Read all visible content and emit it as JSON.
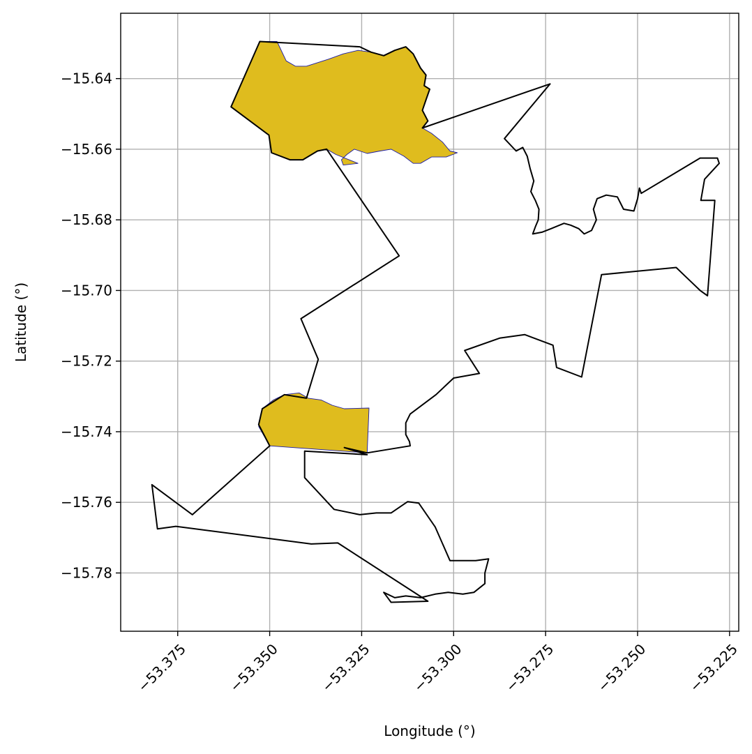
{
  "chart_data": {
    "type": "map",
    "xlabel": "Longitude (°)",
    "ylabel": "Latitude (°)",
    "xlim": [
      -53.3905,
      -53.2225
    ],
    "ylim": [
      -15.7965,
      -15.6215
    ],
    "x_ticks": [
      -53.375,
      -53.35,
      -53.325,
      -53.3,
      -53.275,
      -53.25,
      -53.225
    ],
    "x_tick_labels": [
      "−53.375",
      "−53.350",
      "−53.325",
      "−53.300",
      "−53.275",
      "−53.250",
      "−53.225"
    ],
    "y_ticks": [
      -15.64,
      -15.66,
      -15.68,
      -15.7,
      -15.72,
      -15.74,
      -15.76,
      -15.78
    ],
    "y_tick_labels": [
      "−15.64",
      "−15.66",
      "−15.68",
      "−15.70",
      "−15.72",
      "−15.74",
      "−15.76",
      "−15.78"
    ],
    "grid": true,
    "colors": {
      "highlight_fill": "#dfbc1e",
      "highlight_edge": "#1a1aa6",
      "boundary": "#000000",
      "grid": "#b0b0b0"
    },
    "boundary": [
      [
        -53.3527,
        -15.6295
      ],
      [
        -53.3255,
        -15.631
      ],
      [
        -53.3225,
        -15.6325
      ],
      [
        -53.319,
        -15.6335
      ],
      [
        -53.316,
        -15.632
      ],
      [
        -53.313,
        -15.631
      ],
      [
        -53.311,
        -15.633
      ],
      [
        -53.309,
        -15.637
      ],
      [
        -53.3075,
        -15.639
      ],
      [
        -53.308,
        -15.642
      ],
      [
        -53.3065,
        -15.643
      ],
      [
        -53.3075,
        -15.646
      ],
      [
        -53.3085,
        -15.649
      ],
      [
        -53.307,
        -15.652
      ],
      [
        -53.3085,
        -15.654
      ],
      [
        -53.2738,
        -15.6415
      ],
      [
        -53.2862,
        -15.657
      ],
      [
        -53.283,
        -15.6605
      ],
      [
        -53.2812,
        -15.6595
      ],
      [
        -53.28,
        -15.662
      ],
      [
        -53.2792,
        -15.6655
      ],
      [
        -53.2782,
        -15.669
      ],
      [
        -53.279,
        -15.672
      ],
      [
        -53.2778,
        -15.6745
      ],
      [
        -53.2768,
        -15.677
      ],
      [
        -53.277,
        -15.68
      ],
      [
        -53.2778,
        -15.682
      ],
      [
        -53.2785,
        -15.684
      ],
      [
        -53.276,
        -15.6835
      ],
      [
        -53.2735,
        -15.6825
      ],
      [
        -53.27,
        -15.681
      ],
      [
        -53.2682,
        -15.6815
      ],
      [
        -53.266,
        -15.6825
      ],
      [
        -53.2645,
        -15.684
      ],
      [
        -53.2625,
        -15.683
      ],
      [
        -53.2612,
        -15.68
      ],
      [
        -53.262,
        -15.677
      ],
      [
        -53.261,
        -15.674
      ],
      [
        -53.2585,
        -15.673
      ],
      [
        -53.2555,
        -15.6735
      ],
      [
        -53.2538,
        -15.677
      ],
      [
        -53.251,
        -15.6775
      ],
      [
        -53.25,
        -15.674
      ],
      [
        -53.2495,
        -15.671
      ],
      [
        -53.249,
        -15.6725
      ],
      [
        -53.233,
        -15.6625
      ],
      [
        -53.2283,
        -15.6625
      ],
      [
        -53.2278,
        -15.664
      ],
      [
        -53.2318,
        -15.6685
      ],
      [
        -53.2328,
        -15.6745
      ],
      [
        -53.229,
        -15.6745
      ],
      [
        -53.231,
        -15.7015
      ],
      [
        -53.233,
        -15.7
      ],
      [
        -53.235,
        -15.698
      ],
      [
        -53.237,
        -15.696
      ],
      [
        -53.2395,
        -15.6935
      ],
      [
        -53.2598,
        -15.6955
      ],
      [
        -53.2652,
        -15.7245
      ],
      [
        -53.272,
        -15.7218
      ],
      [
        -53.273,
        -15.7155
      ],
      [
        -53.2807,
        -15.7125
      ],
      [
        -53.2875,
        -15.7135
      ],
      [
        -53.297,
        -15.717
      ],
      [
        -53.293,
        -15.7235
      ],
      [
        -53.3,
        -15.7248
      ],
      [
        -53.3048,
        -15.7295
      ],
      [
        -53.3118,
        -15.735
      ],
      [
        -53.313,
        -15.7375
      ],
      [
        -53.313,
        -15.7408
      ],
      [
        -53.312,
        -15.7428
      ],
      [
        -53.3118,
        -15.744
      ],
      [
        -53.3235,
        -15.746
      ],
      [
        -53.3297,
        -15.7445
      ],
      [
        -53.3245,
        -15.7462
      ],
      [
        -53.3235,
        -15.7465
      ],
      [
        -53.3405,
        -15.7455
      ],
      [
        -53.3405,
        -15.753
      ],
      [
        -53.3325,
        -15.762
      ],
      [
        -53.3255,
        -15.7635
      ],
      [
        -53.321,
        -15.763
      ],
      [
        -53.317,
        -15.763
      ],
      [
        -53.3125,
        -15.7598
      ],
      [
        -53.3095,
        -15.7602
      ],
      [
        -53.305,
        -15.767
      ],
      [
        -53.301,
        -15.7765
      ],
      [
        -53.294,
        -15.7765
      ],
      [
        -53.2905,
        -15.776
      ],
      [
        -53.2915,
        -15.78
      ],
      [
        -53.2915,
        -15.783
      ],
      [
        -53.2945,
        -15.7855
      ],
      [
        -53.2975,
        -15.786
      ],
      [
        -53.3015,
        -15.7855
      ],
      [
        -53.305,
        -15.786
      ],
      [
        -53.309,
        -15.787
      ],
      [
        -53.313,
        -15.7865
      ],
      [
        -53.316,
        -15.787
      ],
      [
        -53.319,
        -15.7855
      ],
      [
        -53.317,
        -15.7883
      ],
      [
        -53.307,
        -15.788
      ],
      [
        -53.3315,
        -15.7715
      ],
      [
        -53.3387,
        -15.7718
      ],
      [
        -53.3755,
        -15.7668
      ],
      [
        -53.3805,
        -15.7675
      ],
      [
        -53.382,
        -15.755
      ],
      [
        -53.371,
        -15.7635
      ],
      [
        -53.35,
        -15.744
      ],
      [
        -53.353,
        -15.738
      ],
      [
        -53.352,
        -15.7335
      ],
      [
        -53.346,
        -15.7295
      ],
      [
        -53.34,
        -15.7305
      ],
      [
        -53.3368,
        -15.7195
      ],
      [
        -53.3415,
        -15.708
      ],
      [
        -53.3148,
        -15.6902
      ],
      [
        -53.3345,
        -15.66
      ],
      [
        -53.337,
        -15.6605
      ],
      [
        -53.341,
        -15.663
      ],
      [
        -53.3445,
        -15.663
      ],
      [
        -53.3495,
        -15.661
      ],
      [
        -53.3502,
        -15.656
      ],
      [
        -53.3605,
        -15.648
      ],
      [
        -53.3527,
        -15.6295
      ]
    ],
    "highlight_regions": [
      [
        [
          -53.3527,
          -15.6295
        ],
        [
          -53.348,
          -15.6295
        ],
        [
          -53.3455,
          -15.635
        ],
        [
          -53.343,
          -15.6365
        ],
        [
          -53.34,
          -15.6365
        ],
        [
          -53.334,
          -15.6345
        ],
        [
          -53.33,
          -15.633
        ],
        [
          -53.326,
          -15.632
        ],
        [
          -53.3225,
          -15.6325
        ],
        [
          -53.319,
          -15.6335
        ],
        [
          -53.316,
          -15.632
        ],
        [
          -53.313,
          -15.631
        ],
        [
          -53.311,
          -15.633
        ],
        [
          -53.309,
          -15.637
        ],
        [
          -53.3075,
          -15.639
        ],
        [
          -53.308,
          -15.642
        ],
        [
          -53.3065,
          -15.643
        ],
        [
          -53.3075,
          -15.646
        ],
        [
          -53.3085,
          -15.649
        ],
        [
          -53.307,
          -15.652
        ],
        [
          -53.3085,
          -15.654
        ],
        [
          -53.306,
          -15.6555
        ],
        [
          -53.303,
          -15.658
        ],
        [
          -53.301,
          -15.6605
        ],
        [
          -53.299,
          -15.661
        ],
        [
          -53.302,
          -15.6622
        ],
        [
          -53.306,
          -15.6622
        ],
        [
          -53.309,
          -15.664
        ],
        [
          -53.311,
          -15.664
        ],
        [
          -53.3135,
          -15.662
        ],
        [
          -53.317,
          -15.66
        ],
        [
          -53.32,
          -15.6605
        ],
        [
          -53.3235,
          -15.6612
        ],
        [
          -53.327,
          -15.66
        ],
        [
          -53.329,
          -15.6615
        ],
        [
          -53.3305,
          -15.663
        ],
        [
          -53.33,
          -15.6645
        ],
        [
          -53.326,
          -15.664
        ],
        [
          -53.332,
          -15.6615
        ],
        [
          -53.3345,
          -15.66
        ],
        [
          -53.337,
          -15.6605
        ],
        [
          -53.341,
          -15.663
        ],
        [
          -53.3445,
          -15.663
        ],
        [
          -53.3495,
          -15.661
        ],
        [
          -53.3502,
          -15.656
        ],
        [
          -53.3605,
          -15.648
        ],
        [
          -53.3527,
          -15.6295
        ]
      ],
      [
        [
          -53.346,
          -15.7295
        ],
        [
          -53.342,
          -15.729
        ],
        [
          -53.3395,
          -15.7305
        ],
        [
          -53.336,
          -15.731
        ],
        [
          -53.333,
          -15.7325
        ],
        [
          -53.3297,
          -15.7335
        ],
        [
          -53.323,
          -15.7333
        ],
        [
          -53.3235,
          -15.746
        ],
        [
          -53.35,
          -15.744
        ],
        [
          -53.353,
          -15.7385
        ],
        [
          -53.352,
          -15.7335
        ],
        [
          -53.349,
          -15.731
        ],
        [
          -53.346,
          -15.7295
        ]
      ]
    ]
  }
}
